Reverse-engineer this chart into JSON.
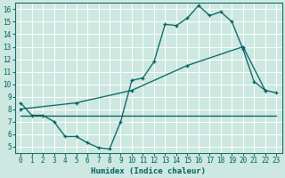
{
  "xlabel": "Humidex (Indice chaleur)",
  "bg_color": "#cce8e0",
  "line_color": "#006060",
  "grid_color": "#ffffff",
  "xlim": [
    -0.5,
    23.5
  ],
  "ylim": [
    4.5,
    16.5
  ],
  "xticks": [
    0,
    1,
    2,
    3,
    4,
    5,
    6,
    7,
    8,
    9,
    10,
    11,
    12,
    13,
    14,
    15,
    16,
    17,
    18,
    19,
    20,
    21,
    22,
    23
  ],
  "yticks": [
    5,
    6,
    7,
    8,
    9,
    10,
    11,
    12,
    13,
    14,
    15,
    16
  ],
  "series1_x": [
    0,
    1,
    2,
    3,
    4,
    5,
    6,
    7,
    8,
    9,
    10,
    11,
    12,
    13,
    14,
    15,
    16,
    17,
    18,
    19,
    20,
    21,
    22
  ],
  "series1_y": [
    8.5,
    7.5,
    7.5,
    7.0,
    5.8,
    5.8,
    5.3,
    4.9,
    4.8,
    7.0,
    10.3,
    10.5,
    11.8,
    14.8,
    14.7,
    15.3,
    16.3,
    15.5,
    15.8,
    15.0,
    12.8,
    10.2,
    9.5
  ],
  "series2_x": [
    0,
    5,
    10,
    15,
    20,
    22,
    23
  ],
  "series2_y": [
    8.0,
    8.5,
    9.5,
    11.5,
    13.0,
    9.5,
    9.3
  ],
  "series3_x": [
    0,
    23
  ],
  "series3_y": [
    7.5,
    7.5
  ]
}
